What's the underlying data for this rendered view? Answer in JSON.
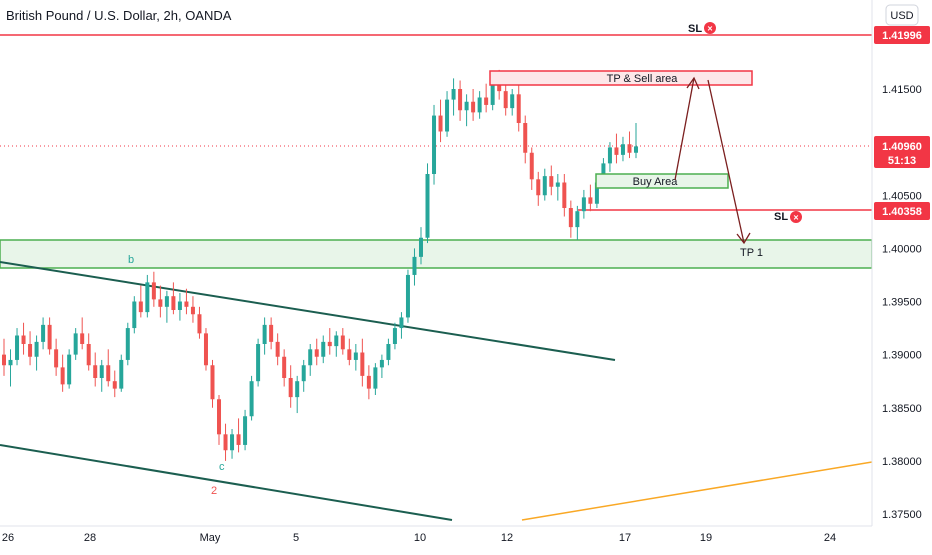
{
  "header": {
    "title": "British Pound / U.S. Dollar, 2h, OANDA",
    "currency": "USD"
  },
  "chart_data": {
    "type": "candlestick",
    "y_range": [
      1.374,
      1.4232
    ],
    "x_range": [
      0,
      932
    ],
    "y_ticks": [
      "1.41500",
      "1.41000",
      "1.40500",
      "1.40000",
      "1.39500",
      "1.39000",
      "1.38500",
      "1.38000",
      "1.37500"
    ],
    "y_tick_values": [
      1.415,
      1.41,
      1.405,
      1.4,
      1.395,
      1.39,
      1.385,
      1.38,
      1.375
    ],
    "x_ticks": [
      "26",
      "28",
      "May",
      "5",
      "10",
      "12",
      "17",
      "19",
      "24"
    ],
    "price_tags": [
      {
        "label": "1.41996",
        "value": 1.41996,
        "color": "#f23645"
      },
      {
        "label": "1.40960",
        "sub": "51:13",
        "value": 1.4096,
        "color": "#f23645"
      },
      {
        "label": "1.40358",
        "value": 1.40358,
        "color": "#f23645"
      }
    ],
    "annotations": {
      "sl_top": "SL",
      "sl_mid": "SL",
      "tp_sell": "TP & Sell area",
      "buy_area": "Buy Area",
      "tp1": "TP 1",
      "wave_b": "b",
      "wave_c": "c",
      "wave_2": "2"
    },
    "colors": {
      "up": "#26a69a",
      "down": "#ef5350",
      "channel": "#1b5e50",
      "zone_green": "#4caf50",
      "zone_red": "#f23645",
      "arrow": "#7b1f1f",
      "trend_orange": "#f9a825"
    },
    "candles": [
      [
        1.39,
        1.3915,
        1.388,
        1.389
      ],
      [
        1.389,
        1.3905,
        1.387,
        1.3895
      ],
      [
        1.3895,
        1.3925,
        1.389,
        1.3918
      ],
      [
        1.3918,
        1.393,
        1.39,
        1.391
      ],
      [
        1.391,
        1.3922,
        1.389,
        1.3898
      ],
      [
        1.3898,
        1.3918,
        1.3885,
        1.3912
      ],
      [
        1.3912,
        1.3935,
        1.3905,
        1.3928
      ],
      [
        1.3928,
        1.3935,
        1.39,
        1.3905
      ],
      [
        1.3905,
        1.3915,
        1.388,
        1.3888
      ],
      [
        1.3888,
        1.39,
        1.3865,
        1.3872
      ],
      [
        1.3872,
        1.3905,
        1.3868,
        1.39
      ],
      [
        1.39,
        1.3925,
        1.3895,
        1.392
      ],
      [
        1.392,
        1.3935,
        1.3905,
        1.391
      ],
      [
        1.391,
        1.392,
        1.3885,
        1.389
      ],
      [
        1.389,
        1.3902,
        1.387,
        1.3878
      ],
      [
        1.3878,
        1.3895,
        1.3865,
        1.389
      ],
      [
        1.389,
        1.3905,
        1.387,
        1.3875
      ],
      [
        1.3875,
        1.3885,
        1.386,
        1.3868
      ],
      [
        1.3868,
        1.39,
        1.3865,
        1.3895
      ],
      [
        1.3895,
        1.393,
        1.389,
        1.3925
      ],
      [
        1.3925,
        1.3955,
        1.392,
        1.395
      ],
      [
        1.395,
        1.3965,
        1.3935,
        1.394
      ],
      [
        1.394,
        1.3975,
        1.3935,
        1.3968
      ],
      [
        1.3968,
        1.3978,
        1.3945,
        1.3952
      ],
      [
        1.3952,
        1.3965,
        1.3935,
        1.3945
      ],
      [
        1.3945,
        1.396,
        1.393,
        1.3955
      ],
      [
        1.3955,
        1.3968,
        1.3938,
        1.3942
      ],
      [
        1.3942,
        1.3958,
        1.3932,
        1.395
      ],
      [
        1.395,
        1.3962,
        1.3938,
        1.3945
      ],
      [
        1.3945,
        1.3955,
        1.393,
        1.3938
      ],
      [
        1.3938,
        1.3945,
        1.3915,
        1.392
      ],
      [
        1.392,
        1.3925,
        1.3885,
        1.389
      ],
      [
        1.389,
        1.3895,
        1.385,
        1.3858
      ],
      [
        1.3858,
        1.3862,
        1.3815,
        1.3825
      ],
      [
        1.3825,
        1.3835,
        1.38,
        1.381
      ],
      [
        1.381,
        1.383,
        1.3802,
        1.3825
      ],
      [
        1.3825,
        1.384,
        1.3808,
        1.3815
      ],
      [
        1.3815,
        1.3848,
        1.381,
        1.3842
      ],
      [
        1.3842,
        1.388,
        1.3838,
        1.3875
      ],
      [
        1.3875,
        1.3915,
        1.387,
        1.391
      ],
      [
        1.391,
        1.3935,
        1.39,
        1.3928
      ],
      [
        1.3928,
        1.3935,
        1.3905,
        1.3912
      ],
      [
        1.3912,
        1.392,
        1.389,
        1.3898
      ],
      [
        1.3898,
        1.3905,
        1.387,
        1.3878
      ],
      [
        1.3878,
        1.389,
        1.385,
        1.386
      ],
      [
        1.386,
        1.388,
        1.3845,
        1.3875
      ],
      [
        1.3875,
        1.3895,
        1.3865,
        1.389
      ],
      [
        1.389,
        1.391,
        1.388,
        1.3905
      ],
      [
        1.3905,
        1.3915,
        1.389,
        1.3898
      ],
      [
        1.3898,
        1.3918,
        1.3892,
        1.3912
      ],
      [
        1.3912,
        1.3925,
        1.39,
        1.3908
      ],
      [
        1.3908,
        1.3922,
        1.3898,
        1.3918
      ],
      [
        1.3918,
        1.3925,
        1.39,
        1.3905
      ],
      [
        1.3905,
        1.3915,
        1.389,
        1.3895
      ],
      [
        1.3895,
        1.391,
        1.3885,
        1.3902
      ],
      [
        1.3902,
        1.3915,
        1.387,
        1.388
      ],
      [
        1.388,
        1.389,
        1.3858,
        1.3868
      ],
      [
        1.3868,
        1.3892,
        1.3862,
        1.3888
      ],
      [
        1.3888,
        1.39,
        1.3878,
        1.3895
      ],
      [
        1.3895,
        1.3915,
        1.389,
        1.391
      ],
      [
        1.391,
        1.393,
        1.3905,
        1.3925
      ],
      [
        1.3925,
        1.394,
        1.3915,
        1.3935
      ],
      [
        1.3935,
        1.398,
        1.393,
        1.3975
      ],
      [
        1.3975,
        1.4,
        1.3965,
        1.3992
      ],
      [
        1.3992,
        1.402,
        1.3985,
        1.401
      ],
      [
        1.401,
        1.408,
        1.4005,
        1.407
      ],
      [
        1.407,
        1.4135,
        1.406,
        1.4125
      ],
      [
        1.4125,
        1.414,
        1.41,
        1.411
      ],
      [
        1.411,
        1.4148,
        1.4105,
        1.414
      ],
      [
        1.414,
        1.416,
        1.4125,
        1.415
      ],
      [
        1.415,
        1.4158,
        1.412,
        1.413
      ],
      [
        1.413,
        1.4145,
        1.4115,
        1.4138
      ],
      [
        1.4138,
        1.415,
        1.412,
        1.4128
      ],
      [
        1.4128,
        1.4148,
        1.4122,
        1.4142
      ],
      [
        1.4142,
        1.4155,
        1.4128,
        1.4135
      ],
      [
        1.4135,
        1.416,
        1.413,
        1.4155
      ],
      [
        1.4155,
        1.4168,
        1.414,
        1.4148
      ],
      [
        1.4148,
        1.416,
        1.4125,
        1.4132
      ],
      [
        1.4132,
        1.415,
        1.4125,
        1.4145
      ],
      [
        1.4145,
        1.4155,
        1.411,
        1.4118
      ],
      [
        1.4118,
        1.4125,
        1.408,
        1.409
      ],
      [
        1.409,
        1.4095,
        1.4055,
        1.4065
      ],
      [
        1.4065,
        1.4072,
        1.404,
        1.405
      ],
      [
        1.405,
        1.4075,
        1.4045,
        1.4068
      ],
      [
        1.4068,
        1.4078,
        1.405,
        1.4058
      ],
      [
        1.4058,
        1.407,
        1.4045,
        1.4062
      ],
      [
        1.4062,
        1.407,
        1.403,
        1.4038
      ],
      [
        1.4038,
        1.4045,
        1.401,
        1.402
      ],
      [
        1.402,
        1.404,
        1.4008,
        1.4035
      ],
      [
        1.4035,
        1.4055,
        1.4028,
        1.4048
      ],
      [
        1.4048,
        1.406,
        1.4035,
        1.4042
      ],
      [
        1.4042,
        1.4068,
        1.4038,
        1.4062
      ],
      [
        1.4062,
        1.4085,
        1.4058,
        1.408
      ],
      [
        1.408,
        1.41,
        1.4072,
        1.4095
      ],
      [
        1.4095,
        1.4108,
        1.408,
        1.4088
      ],
      [
        1.4088,
        1.4105,
        1.4082,
        1.4098
      ],
      [
        1.4098,
        1.411,
        1.4085,
        1.409
      ],
      [
        1.409,
        1.4118,
        1.4085,
        1.4096
      ]
    ]
  }
}
